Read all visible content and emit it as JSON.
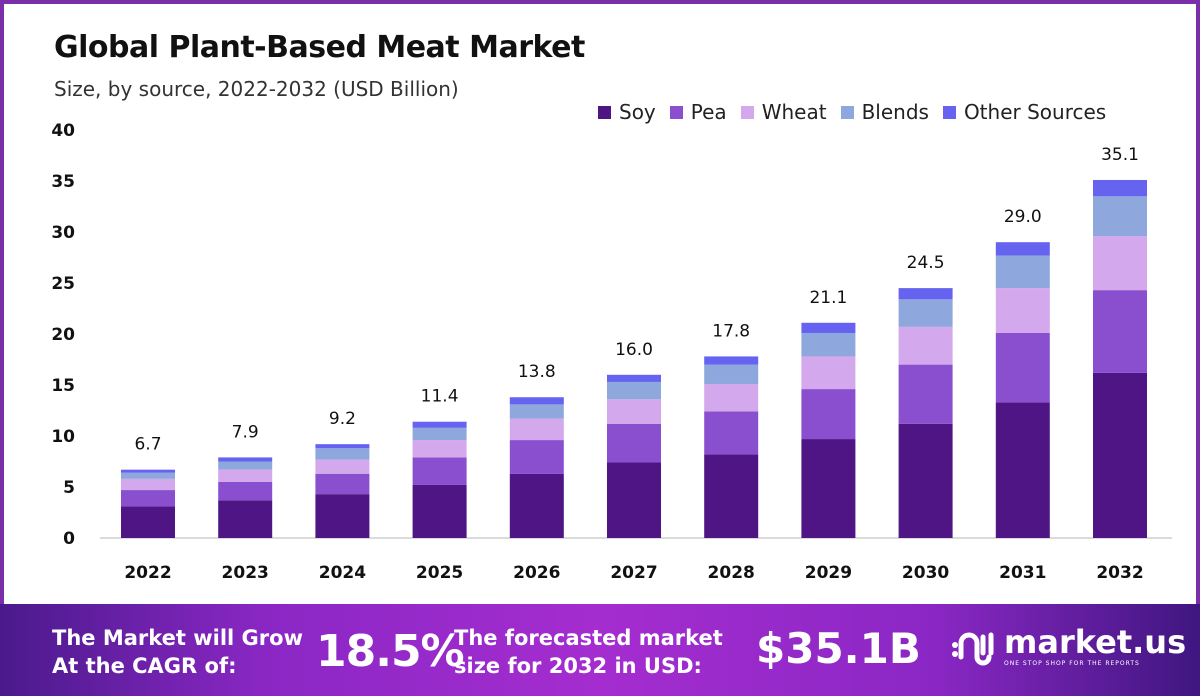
{
  "header": {
    "title": "Global Plant-Based Meat Market",
    "subtitle": "Size, by source, 2022-2032 (USD Billion)"
  },
  "colors": {
    "Soy": "#501585",
    "Pea": "#8a4fcf",
    "Wheat": "#d3a8ec",
    "Blends": "#8ea7dc",
    "Other Sources": "#6663f0",
    "frame": "#7a2fa8"
  },
  "chart_data": {
    "type": "bar",
    "stacked": true,
    "title": "Global Plant-Based Meat Market",
    "subtitle": "Size, by source, 2022-2032 (USD Billion)",
    "xlabel": "",
    "ylabel": "",
    "ylim": [
      0,
      40
    ],
    "yticks": [
      0,
      5,
      10,
      15,
      20,
      25,
      30,
      35,
      40
    ],
    "grid": false,
    "legend_position": "top-right",
    "categories": [
      "2022",
      "2023",
      "2024",
      "2025",
      "2026",
      "2027",
      "2028",
      "2029",
      "2030",
      "2031",
      "2032"
    ],
    "totals": [
      6.7,
      7.9,
      9.2,
      11.4,
      13.8,
      16.0,
      17.8,
      21.1,
      24.5,
      29.0,
      35.1
    ],
    "total_labels": [
      "6.7",
      "7.9",
      "9.2",
      "11.4",
      "13.8",
      "16.0",
      "17.8",
      "21.1",
      "24.5",
      "29.0",
      "35.1"
    ],
    "series": [
      {
        "name": "Soy",
        "values": [
          3.1,
          3.7,
          4.3,
          5.2,
          6.3,
          7.4,
          8.2,
          9.7,
          11.2,
          13.3,
          16.2
        ]
      },
      {
        "name": "Pea",
        "values": [
          1.6,
          1.8,
          2.0,
          2.7,
          3.3,
          3.8,
          4.2,
          4.9,
          5.8,
          6.8,
          8.1
        ]
      },
      {
        "name": "Wheat",
        "values": [
          1.1,
          1.2,
          1.4,
          1.7,
          2.1,
          2.4,
          2.7,
          3.2,
          3.7,
          4.4,
          5.3
        ]
      },
      {
        "name": "Blends",
        "values": [
          0.6,
          0.8,
          1.1,
          1.2,
          1.4,
          1.7,
          1.9,
          2.3,
          2.7,
          3.2,
          3.9
        ]
      },
      {
        "name": "Other Sources",
        "values": [
          0.3,
          0.4,
          0.4,
          0.6,
          0.7,
          0.7,
          0.8,
          1.0,
          1.1,
          1.3,
          1.6
        ]
      }
    ]
  },
  "legend": [
    "Soy",
    "Pea",
    "Wheat",
    "Blends",
    "Other Sources"
  ],
  "footer": {
    "cagr_line1": "The Market will Grow",
    "cagr_line2": "At the CAGR of:",
    "cagr_value": "18.5%",
    "forecast_line1": "The forecasted market",
    "forecast_line2": "size for 2032 in USD:",
    "forecast_value": "$35.1B",
    "logo_name": "market.us",
    "logo_tagline": "ONE STOP SHOP FOR THE REPORTS"
  }
}
